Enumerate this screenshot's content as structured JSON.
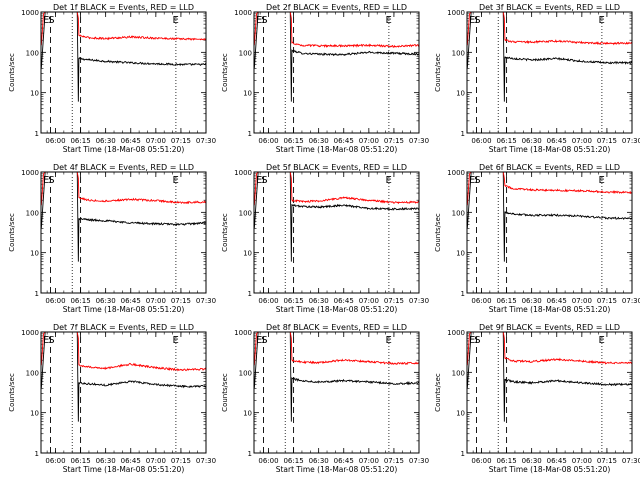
{
  "figure": {
    "background": "#ffffff",
    "axis_color": "#000000",
    "series_colors": {
      "events": "#000000",
      "lld": "#ff0000"
    }
  },
  "chart_data": [
    {
      "type": "line",
      "title": "Det 1f BLACK = Events, RED = LLD",
      "xlabel": "Start Time (18-Mar-08 05:51:20)",
      "ylabel": "Counts/sec",
      "yscale": "log",
      "ylim": [
        1,
        1000
      ],
      "xlim": [
        "05:51:20",
        "07:30:00"
      ],
      "xticks": [
        "06:00",
        "06:15",
        "06:30",
        "06:45",
        "07:00",
        "07:15",
        "07:30"
      ],
      "yticks": [
        "1",
        "10",
        "100",
        "1000"
      ],
      "annotations": [
        "E",
        "S",
        "E"
      ],
      "series": [
        {
          "color": "#000000",
          "x": [
            "06:14",
            "06:20",
            "06:30",
            "06:45",
            "07:00",
            "07:15",
            "07:30"
          ],
          "y": [
            70,
            65,
            60,
            55,
            52,
            50,
            50
          ]
        },
        {
          "color": "#ff0000",
          "x": [
            "06:14",
            "06:20",
            "06:30",
            "06:45",
            "07:00",
            "07:15",
            "07:30"
          ],
          "y": [
            260,
            230,
            220,
            240,
            225,
            215,
            210
          ]
        }
      ]
    },
    {
      "type": "line",
      "title": "Det 2f BLACK = Events, RED = LLD",
      "xlabel": "Start Time (18-Mar-08 05:51:20)",
      "ylabel": "Counts/sec",
      "yscale": "log",
      "ylim": [
        1,
        1000
      ],
      "xlim": [
        "05:51:20",
        "07:30:00"
      ],
      "xticks": [
        "06:00",
        "06:15",
        "06:30",
        "06:45",
        "07:00",
        "07:15",
        "07:30"
      ],
      "yticks": [
        "1",
        "10",
        "100",
        "1000"
      ],
      "annotations": [
        "E",
        "S",
        "E"
      ],
      "series": [
        {
          "color": "#000000",
          "x": [
            "06:14",
            "06:20",
            "06:30",
            "06:45",
            "07:00",
            "07:15",
            "07:30"
          ],
          "y": [
            110,
            95,
            90,
            88,
            100,
            95,
            90
          ]
        },
        {
          "color": "#ff0000",
          "x": [
            "06:14",
            "06:20",
            "06:30",
            "06:45",
            "07:00",
            "07:15",
            "07:30"
          ],
          "y": [
            170,
            150,
            145,
            145,
            150,
            140,
            150
          ]
        }
      ]
    },
    {
      "type": "line",
      "title": "Det 3f BLACK = Events, RED = LLD",
      "xlabel": "Start Time (18-Mar-08 05:51:20)",
      "ylabel": "Counts/sec",
      "yscale": "log",
      "ylim": [
        1,
        1000
      ],
      "xlim": [
        "05:51:20",
        "07:30:00"
      ],
      "xticks": [
        "06:00",
        "06:15",
        "06:30",
        "06:45",
        "07:00",
        "07:15",
        "07:30"
      ],
      "yticks": [
        "1",
        "10",
        "100",
        "1000"
      ],
      "annotations": [
        "E",
        "S",
        "E"
      ],
      "series": [
        {
          "color": "#000000",
          "x": [
            "06:14",
            "06:20",
            "06:30",
            "06:45",
            "07:00",
            "07:15",
            "07:30"
          ],
          "y": [
            75,
            70,
            65,
            70,
            60,
            55,
            55
          ]
        },
        {
          "color": "#ff0000",
          "x": [
            "06:14",
            "06:20",
            "06:30",
            "06:45",
            "07:00",
            "07:15",
            "07:30"
          ],
          "y": [
            200,
            180,
            180,
            190,
            175,
            165,
            170
          ]
        }
      ]
    },
    {
      "type": "line",
      "title": "Det 4f BLACK = Events, RED = LLD",
      "xlabel": "Start Time (18-Mar-08 05:51:20)",
      "ylabel": "Counts/sec",
      "yscale": "log",
      "ylim": [
        1,
        1000
      ],
      "xlim": [
        "05:51:20",
        "07:30:00"
      ],
      "xticks": [
        "06:00",
        "06:15",
        "06:30",
        "06:45",
        "07:00",
        "07:15",
        "07:30"
      ],
      "yticks": [
        "1",
        "10",
        "100",
        "1000"
      ],
      "annotations": [
        "E",
        "S",
        "E"
      ],
      "series": [
        {
          "color": "#000000",
          "x": [
            "06:14",
            "06:20",
            "06:30",
            "06:45",
            "07:00",
            "07:15",
            "07:30"
          ],
          "y": [
            70,
            65,
            62,
            55,
            52,
            50,
            55
          ]
        },
        {
          "color": "#ff0000",
          "x": [
            "06:14",
            "06:20",
            "06:30",
            "06:45",
            "07:00",
            "07:15",
            "07:30"
          ],
          "y": [
            230,
            200,
            190,
            210,
            195,
            175,
            180
          ]
        }
      ]
    },
    {
      "type": "line",
      "title": "Det 5f BLACK = Events, RED = LLD",
      "xlabel": "Start Time (18-Mar-08 05:51:20)",
      "ylabel": "Counts/sec",
      "yscale": "log",
      "ylim": [
        1,
        1000
      ],
      "xlim": [
        "05:51:20",
        "07:30:00"
      ],
      "xticks": [
        "06:00",
        "06:15",
        "06:30",
        "06:45",
        "07:00",
        "07:15",
        "07:30"
      ],
      "yticks": [
        "1",
        "10",
        "100",
        "1000"
      ],
      "annotations": [
        "E",
        "S",
        "E"
      ],
      "series": [
        {
          "color": "#000000",
          "x": [
            "06:14",
            "06:20",
            "06:30",
            "06:45",
            "07:00",
            "07:15",
            "07:30"
          ],
          "y": [
            150,
            140,
            135,
            150,
            125,
            120,
            125
          ]
        },
        {
          "color": "#ff0000",
          "x": [
            "06:14",
            "06:20",
            "06:30",
            "06:45",
            "07:00",
            "07:15",
            "07:30"
          ],
          "y": [
            200,
            185,
            190,
            230,
            200,
            175,
            180
          ]
        }
      ]
    },
    {
      "type": "line",
      "title": "Det 6f BLACK = Events, RED = LLD",
      "xlabel": "Start Time (18-Mar-08 05:51:20)",
      "ylabel": "Counts/sec",
      "yscale": "log",
      "ylim": [
        1,
        1000
      ],
      "xlim": [
        "05:51:20",
        "07:30:00"
      ],
      "xticks": [
        "06:00",
        "06:15",
        "06:30",
        "06:45",
        "07:00",
        "07:15",
        "07:30"
      ],
      "yticks": [
        "1",
        "10",
        "100",
        "1000"
      ],
      "annotations": [
        "E",
        "S",
        "E"
      ],
      "series": [
        {
          "color": "#000000",
          "x": [
            "06:14",
            "06:20",
            "06:30",
            "06:45",
            "07:00",
            "07:15",
            "07:30"
          ],
          "y": [
            100,
            90,
            85,
            85,
            80,
            72,
            70
          ]
        },
        {
          "color": "#ff0000",
          "x": [
            "06:14",
            "06:20",
            "06:30",
            "06:45",
            "07:00",
            "07:15",
            "07:30"
          ],
          "y": [
            450,
            380,
            360,
            350,
            340,
            320,
            310
          ]
        }
      ]
    },
    {
      "type": "line",
      "title": "Det 7f BLACK = Events, RED = LLD",
      "xlabel": "Start Time (18-Mar-08 05:51:20)",
      "ylabel": "Counts/sec",
      "yscale": "log",
      "ylim": [
        1,
        1000
      ],
      "xlim": [
        "05:51:20",
        "07:30:00"
      ],
      "xticks": [
        "06:00",
        "06:15",
        "06:30",
        "06:45",
        "07:00",
        "07:15",
        "07:30"
      ],
      "yticks": [
        "1",
        "10",
        "100",
        "1000"
      ],
      "annotations": [
        "E",
        "S",
        "E"
      ],
      "series": [
        {
          "color": "#000000",
          "x": [
            "06:14",
            "06:20",
            "06:30",
            "06:45",
            "07:00",
            "07:15",
            "07:30"
          ],
          "y": [
            55,
            52,
            48,
            60,
            50,
            45,
            45
          ]
        },
        {
          "color": "#ff0000",
          "x": [
            "06:14",
            "06:20",
            "06:30",
            "06:45",
            "07:00",
            "07:15",
            "07:30"
          ],
          "y": [
            150,
            135,
            125,
            160,
            130,
            115,
            120
          ]
        }
      ]
    },
    {
      "type": "line",
      "title": "Det 8f BLACK = Events, RED = LLD",
      "xlabel": "Start Time (18-Mar-08 05:51:20)",
      "ylabel": "Counts/sec",
      "yscale": "log",
      "ylim": [
        1,
        1000
      ],
      "xlim": [
        "05:51:20",
        "07:30:00"
      ],
      "xticks": [
        "06:00",
        "06:15",
        "06:30",
        "06:45",
        "07:00",
        "07:15",
        "07:30"
      ],
      "yticks": [
        "1",
        "10",
        "100",
        "1000"
      ],
      "annotations": [
        "E",
        "S",
        "E"
      ],
      "series": [
        {
          "color": "#000000",
          "x": [
            "06:14",
            "06:20",
            "06:30",
            "06:45",
            "07:00",
            "07:15",
            "07:30"
          ],
          "y": [
            70,
            62,
            58,
            62,
            58,
            52,
            55
          ]
        },
        {
          "color": "#ff0000",
          "x": [
            "06:14",
            "06:20",
            "06:30",
            "06:45",
            "07:00",
            "07:15",
            "07:30"
          ],
          "y": [
            200,
            180,
            175,
            200,
            185,
            165,
            170
          ]
        }
      ]
    },
    {
      "type": "line",
      "title": "Det 9f BLACK = Events, RED = LLD",
      "xlabel": "Start Time (18-Mar-08 05:51:20)",
      "ylabel": "Counts/sec",
      "yscale": "log",
      "ylim": [
        1,
        1000
      ],
      "xlim": [
        "05:51:20",
        "07:30:00"
      ],
      "xticks": [
        "06:00",
        "06:15",
        "06:30",
        "06:45",
        "07:00",
        "07:15",
        "07:30"
      ],
      "yticks": [
        "1",
        "10",
        "100",
        "1000"
      ],
      "annotations": [
        "E",
        "S",
        "E"
      ],
      "series": [
        {
          "color": "#000000",
          "x": [
            "06:14",
            "06:20",
            "06:30",
            "06:45",
            "07:00",
            "07:15",
            "07:30"
          ],
          "y": [
            65,
            58,
            55,
            62,
            55,
            50,
            50
          ]
        },
        {
          "color": "#ff0000",
          "x": [
            "06:14",
            "06:20",
            "06:30",
            "06:45",
            "07:00",
            "07:15",
            "07:30"
          ],
          "y": [
            220,
            190,
            185,
            210,
            190,
            170,
            175
          ]
        }
      ]
    }
  ]
}
